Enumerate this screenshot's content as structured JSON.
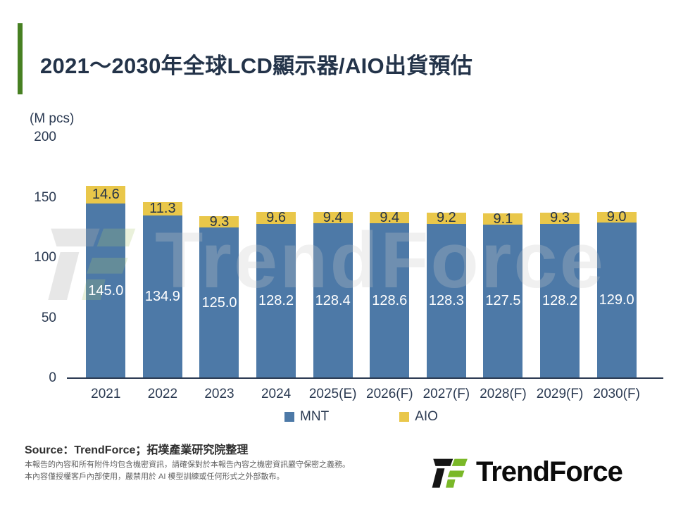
{
  "slide": {
    "title": "2021～2030年全球LCD顯示器/AIO出貨預估",
    "unit_label": "(M pcs)",
    "source_line": "Source：TrendForce；拓墣產業研究院整理",
    "disclaimer_line1": "本報告的內容和所有附件均包含機密資訊，請確保對於本報告內容之機密資訊嚴守保密之義務。",
    "disclaimer_line2": "本內容僅授權客戶內部使用，嚴禁用於 AI 模型訓練或任何形式之外部散布。",
    "logo_text": "TrendForce",
    "watermark_text": "TrendForce"
  },
  "chart_data": {
    "type": "bar",
    "stacked": true,
    "title": "2021～2030年全球LCD顯示器/AIO出貨預估",
    "ylabel": "(M pcs)",
    "ylim": [
      0,
      200
    ],
    "yticks": [
      0,
      50,
      100,
      150,
      200
    ],
    "grid": false,
    "legend_position": "bottom",
    "categories": [
      "2021",
      "2022",
      "2023",
      "2024",
      "2025(E)",
      "2026(F)",
      "2027(F)",
      "2028(F)",
      "2029(F)",
      "2030(F)"
    ],
    "series": [
      {
        "name": "MNT",
        "color": "#4d79a7",
        "label_color": "#ffffff",
        "values": [
          145.0,
          134.9,
          125.0,
          128.2,
          128.4,
          128.6,
          128.3,
          127.5,
          128.2,
          129.0
        ]
      },
      {
        "name": "AIO",
        "color": "#e9c74a",
        "label_color": "#243349",
        "values": [
          14.6,
          11.3,
          9.3,
          9.6,
          9.4,
          9.4,
          9.2,
          9.1,
          9.3,
          9.0
        ]
      }
    ]
  },
  "colors": {
    "accent_green": "#478022",
    "title_navy": "#233349",
    "axis_navy": "#2b3a52",
    "mnt_blue": "#4d79a7",
    "aio_yellow": "#e9c74a",
    "logo_green": "#7ab828",
    "logo_black": "#151515"
  }
}
